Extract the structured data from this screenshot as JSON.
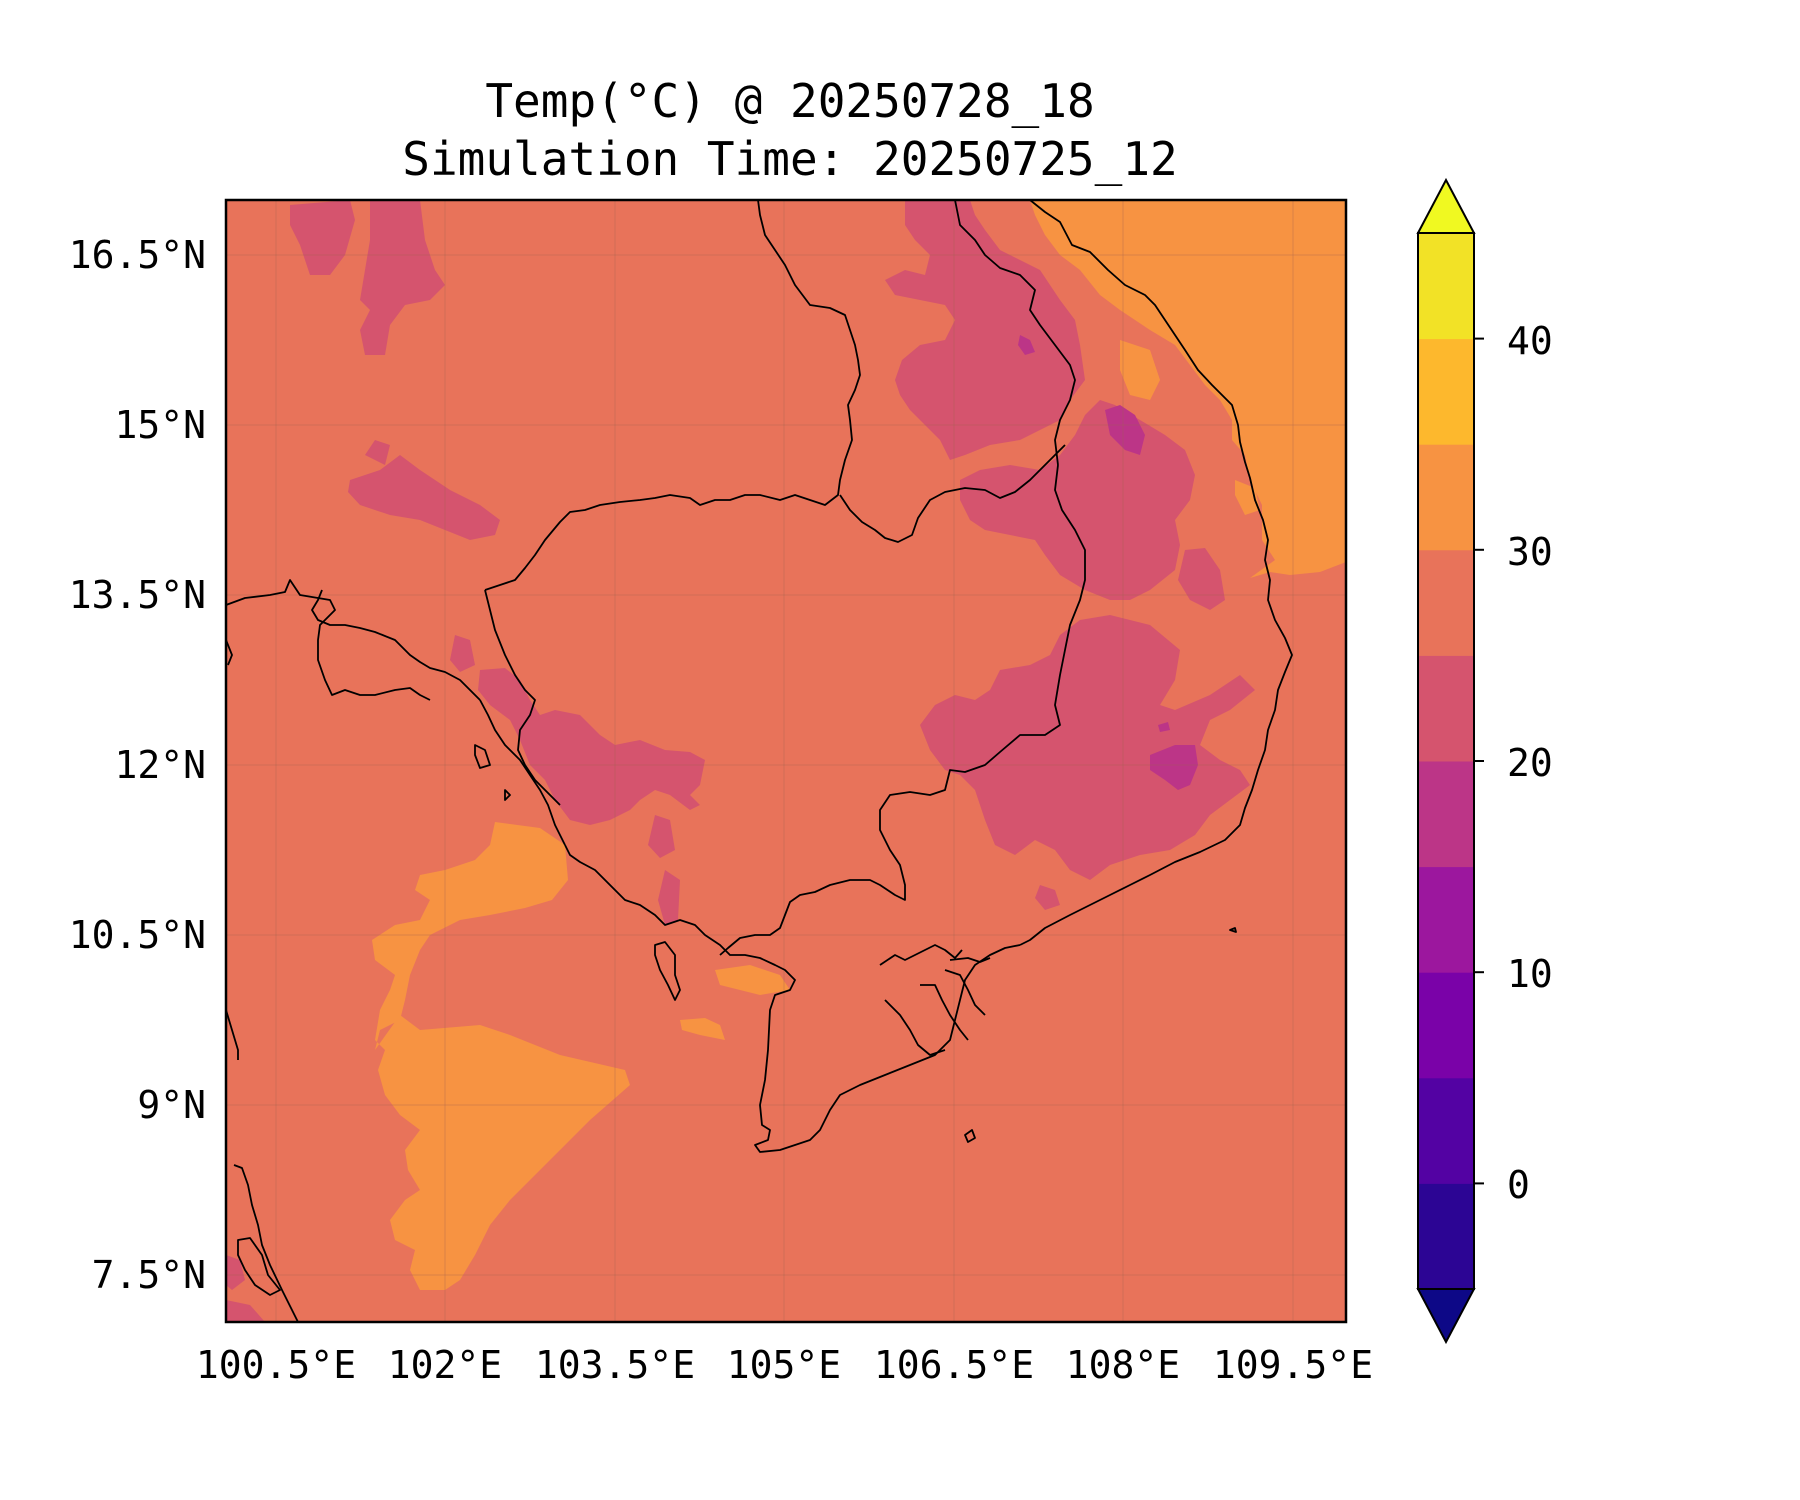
{
  "title": {
    "line1": "Temp(°C) @ 20250728_18",
    "line2": "Simulation Time: 20250725_12"
  },
  "map": {
    "lat_ticks": [
      "16.5°N",
      "15°N",
      "13.5°N",
      "12°N",
      "10.5°N",
      "9°N",
      "7.5°N"
    ],
    "lon_ticks": [
      "100.5°E",
      "102°E",
      "103.5°E",
      "105°E",
      "106.5°E",
      "108°E",
      "109.5°E"
    ],
    "lat_values": [
      16.5,
      15,
      13.5,
      12,
      10.5,
      9,
      7.5
    ],
    "lon_values": [
      100.5,
      102,
      103.5,
      105,
      106.5,
      108,
      109.5
    ],
    "lat_range": [
      7.1,
      17.0
    ],
    "lon_range": [
      100.5,
      110.4
    ],
    "background_class_color": "#e8735a",
    "gridlines": true
  },
  "colorbar": {
    "label_ticks": [
      "40",
      "30",
      "20",
      "10",
      "0"
    ],
    "tick_values": [
      40,
      30,
      20,
      10,
      0
    ],
    "range": [
      -5,
      45
    ],
    "step": 5,
    "extend": "both",
    "colors": [
      "#0d0887",
      "#2c0594",
      "#5302a3",
      "#7a02a8",
      "#9c179e",
      "#bc3587",
      "#d5546e",
      "#e8735a",
      "#f79342",
      "#fdb82d",
      "#f2e226",
      "#f0f921"
    ]
  },
  "legend_colors": {
    "land_cool": "#d5546e",
    "cold_spot": "#bc3587",
    "warm_sea": "#f79342"
  }
}
